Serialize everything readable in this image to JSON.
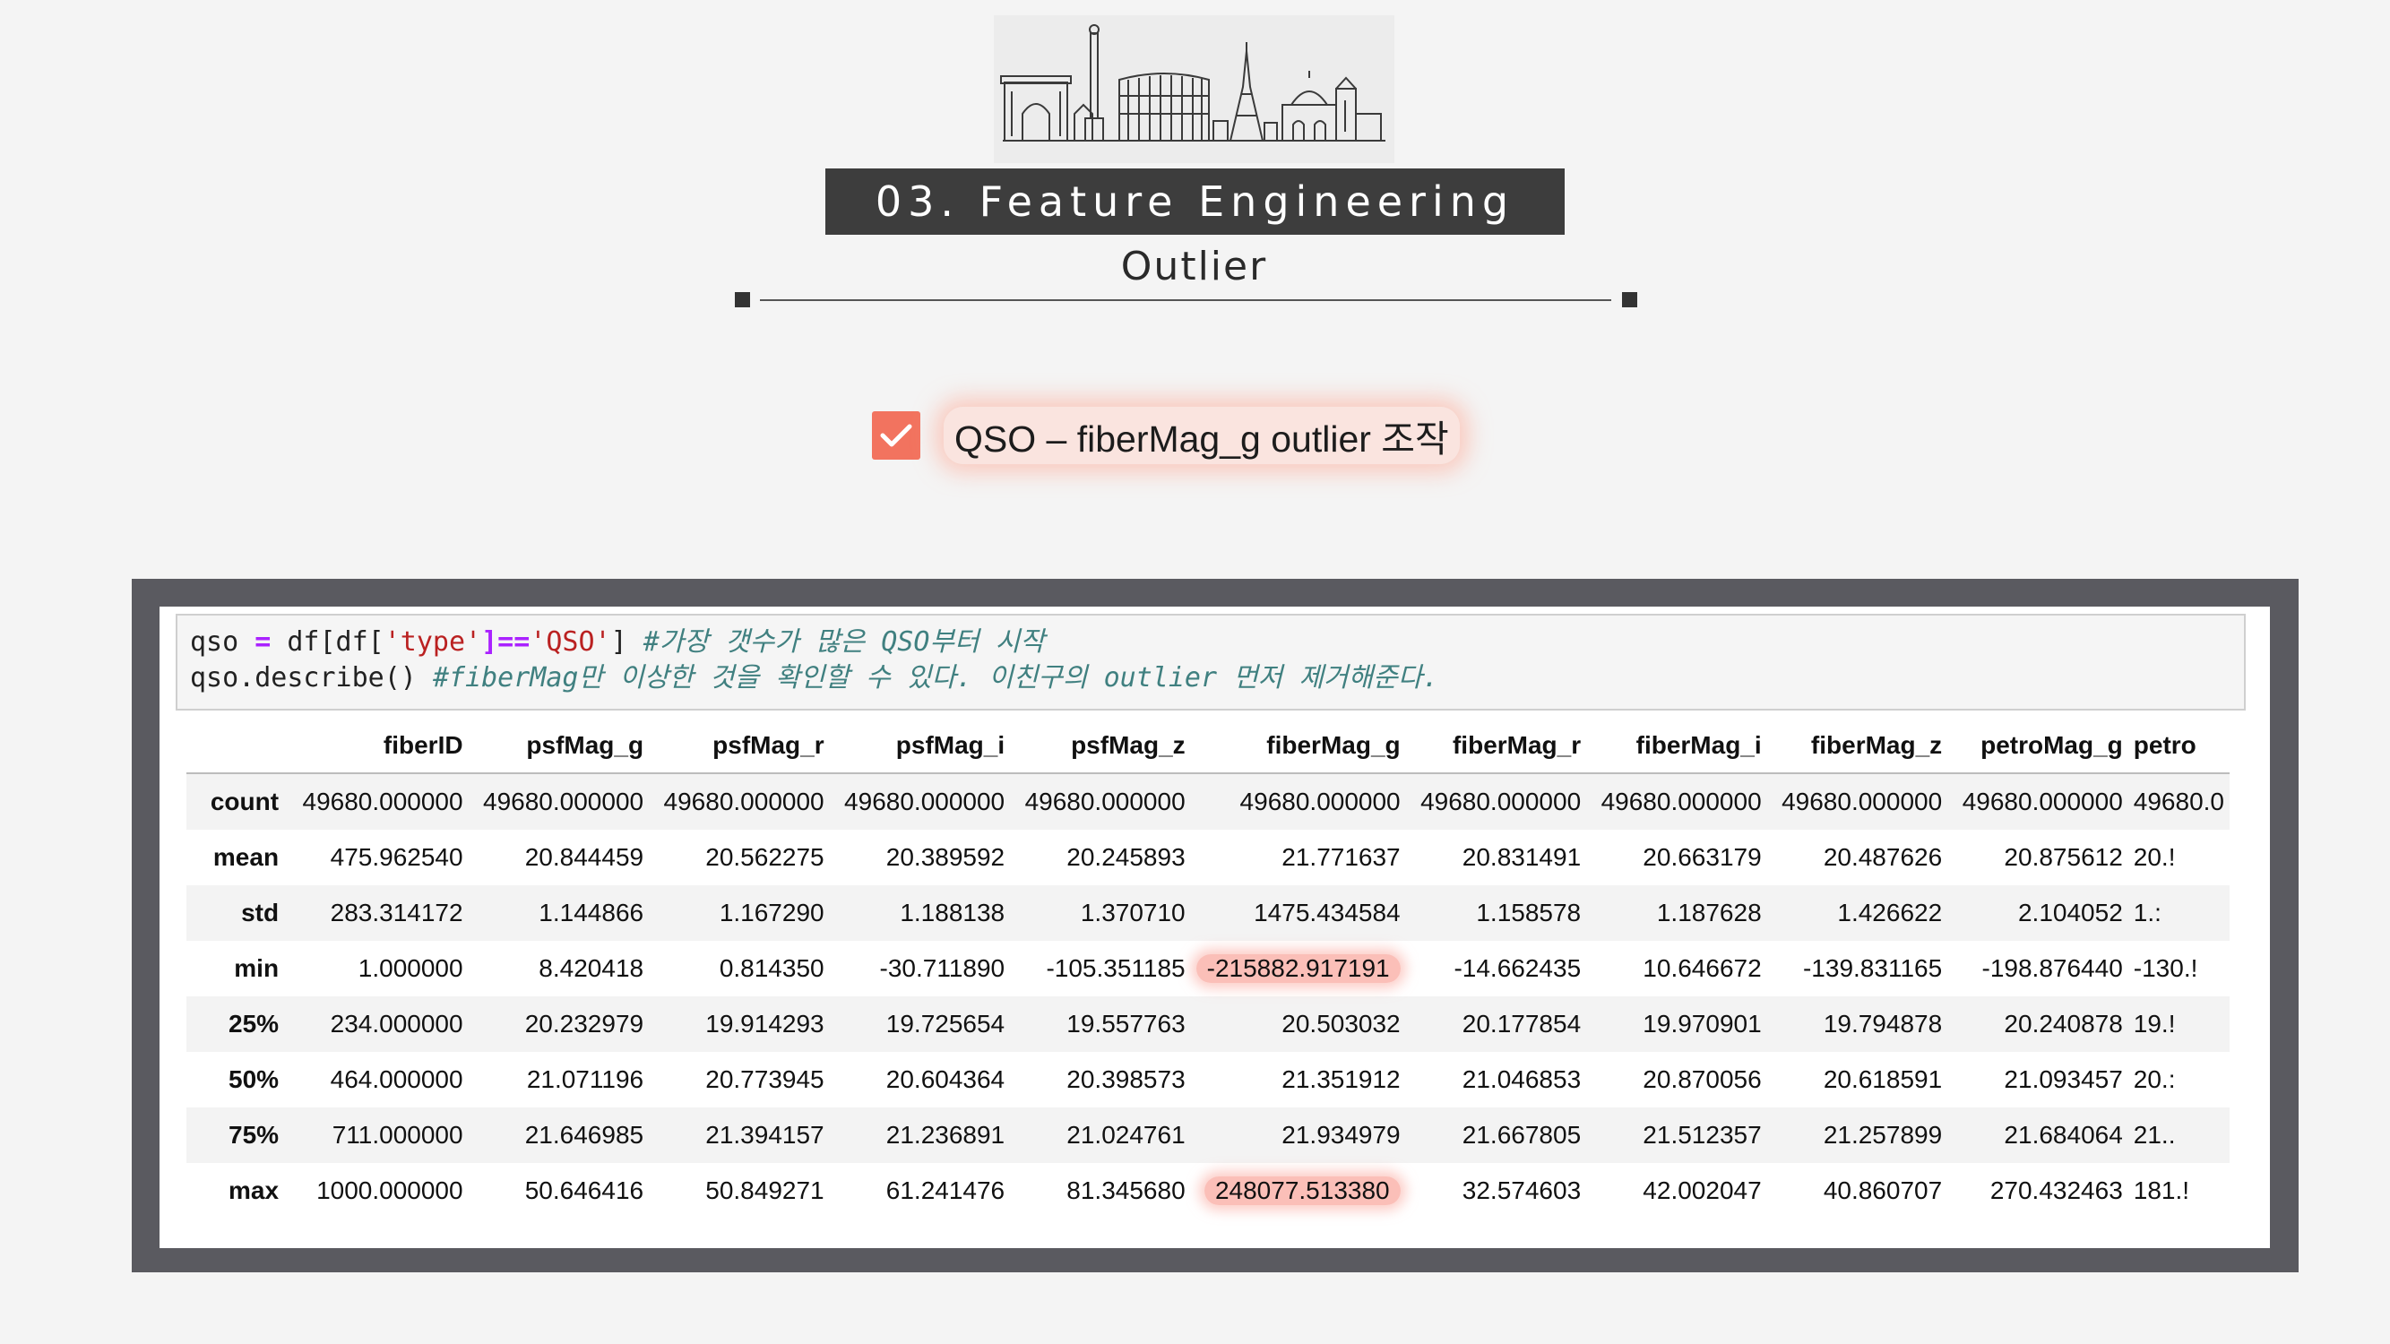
{
  "slide": {
    "title": "03. Feature Engineering",
    "subtitle": "Outlier",
    "heading": "QSO – fiberMag_g outlier 조작",
    "accent_color": "#f2735f",
    "title_bar_color": "#3d3d3d",
    "header_image_icon": "skyline-landmarks-icon",
    "checkbox_icon": "check-icon"
  },
  "code": {
    "line1": {
      "var": "qso",
      "op": "=",
      "expr_a": "df[df[",
      "str1": "'type'",
      "eq": "]==",
      "str2": "'QSO'",
      "expr_b": "]",
      "comment": "#가장 갯수가 많은 QSO부터 시작"
    },
    "line2": {
      "call": "qso.describe()",
      "comment": "#fiberMag만 이상한 것을 확인할 수 있다. 이친구의 outlier 먼저 제거해준다."
    }
  },
  "table": {
    "columns": [
      "",
      "fiberID",
      "psfMag_g",
      "psfMag_r",
      "psfMag_i",
      "psfMag_z",
      "fiberMag_g",
      "fiberMag_r",
      "fiberMag_i",
      "fiberMag_z",
      "petroMag_g",
      "petro"
    ],
    "rows": [
      {
        "label": "count",
        "values": [
          "49680.000000",
          "49680.000000",
          "49680.000000",
          "49680.000000",
          "49680.000000",
          "49680.000000",
          "49680.000000",
          "49680.000000",
          "49680.000000",
          "49680.000000",
          "49680.0"
        ]
      },
      {
        "label": "mean",
        "values": [
          "475.962540",
          "20.844459",
          "20.562275",
          "20.389592",
          "20.245893",
          "21.771637",
          "20.831491",
          "20.663179",
          "20.487626",
          "20.875612",
          "20.!"
        ]
      },
      {
        "label": "std",
        "values": [
          "283.314172",
          "1.144866",
          "1.167290",
          "1.188138",
          "1.370710",
          "1475.434584",
          "1.158578",
          "1.187628",
          "1.426622",
          "2.104052",
          "1.:"
        ]
      },
      {
        "label": "min",
        "values": [
          "1.000000",
          "8.420418",
          "0.814350",
          "-30.711890",
          "-105.351185",
          "-215882.917191",
          "-14.662435",
          "10.646672",
          "-139.831165",
          "-198.876440",
          "-130.!"
        ]
      },
      {
        "label": "25%",
        "values": [
          "234.000000",
          "20.232979",
          "19.914293",
          "19.725654",
          "19.557763",
          "20.503032",
          "20.177854",
          "19.970901",
          "19.794878",
          "20.240878",
          "19.!"
        ]
      },
      {
        "label": "50%",
        "values": [
          "464.000000",
          "21.071196",
          "20.773945",
          "20.604364",
          "20.398573",
          "21.351912",
          "21.046853",
          "20.870056",
          "20.618591",
          "21.093457",
          "20.:"
        ]
      },
      {
        "label": "75%",
        "values": [
          "711.000000",
          "21.646985",
          "21.394157",
          "21.236891",
          "21.024761",
          "21.934979",
          "21.667805",
          "21.512357",
          "21.257899",
          "21.684064",
          "21.."
        ]
      },
      {
        "label": "max",
        "values": [
          "1000.000000",
          "50.646416",
          "50.849271",
          "61.241476",
          "81.345680",
          "248077.513380",
          "32.574603",
          "42.002047",
          "40.860707",
          "270.432463",
          "181.!"
        ]
      }
    ],
    "highlighted_cells": [
      {
        "row": "min",
        "column": "fiberMag_g"
      },
      {
        "row": "max",
        "column": "fiberMag_g"
      }
    ]
  }
}
